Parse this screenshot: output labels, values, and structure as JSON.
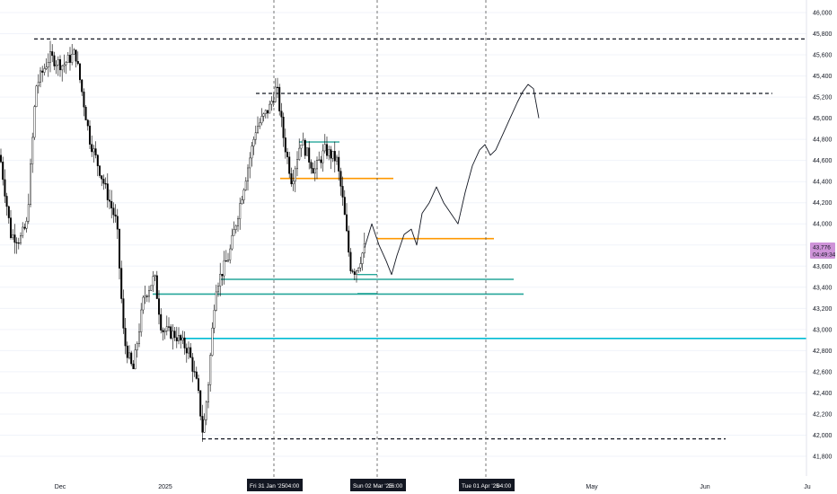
{
  "chart_data": {
    "type": "candlestick",
    "y_ticks": [
      "46,000",
      "45,800",
      "45,600",
      "45,400",
      "45,200",
      "45,000",
      "44,800",
      "44,600",
      "44,400",
      "44,200",
      "44,000",
      "43,800",
      "43,600",
      "43,400",
      "43,200",
      "43,000",
      "42,800",
      "42,600",
      "42,400",
      "42,200",
      "42,000",
      "41,800"
    ],
    "ylim": [
      41800,
      46000
    ],
    "x_ticks": [
      "Dec",
      "2025",
      "May",
      "Jun",
      "Ju"
    ],
    "date_tags": [
      {
        "date": "Fri 31 Jan '25",
        "time": "04:00"
      },
      {
        "date": "Sun 02 Mar '25",
        "time": "16:00"
      },
      {
        "date": "Tue 01 Apr '25",
        "time": "04:00"
      }
    ],
    "last_price": "43,776",
    "countdown": "04:49:34",
    "horizontal_levels": [
      {
        "price": 45750,
        "style": "dashed",
        "color": "#131722"
      },
      {
        "price": 45235,
        "style": "dashed",
        "color": "#131722"
      },
      {
        "price": 44430,
        "style": "solid",
        "color": "#ff9800"
      },
      {
        "price": 43860,
        "style": "solid",
        "color": "#ff9800"
      },
      {
        "price": 43475,
        "style": "solid",
        "color": "#26a69a"
      },
      {
        "price": 43335,
        "style": "solid",
        "color": "#26a69a"
      },
      {
        "price": 42915,
        "style": "solid",
        "color": "#00bcd4"
      },
      {
        "price": 41965,
        "style": "dashed",
        "color": "#131722"
      }
    ],
    "colors": {
      "candle": "#000000",
      "grid": "#f0f3fa",
      "axis": "#131722",
      "path": "#131722"
    }
  }
}
